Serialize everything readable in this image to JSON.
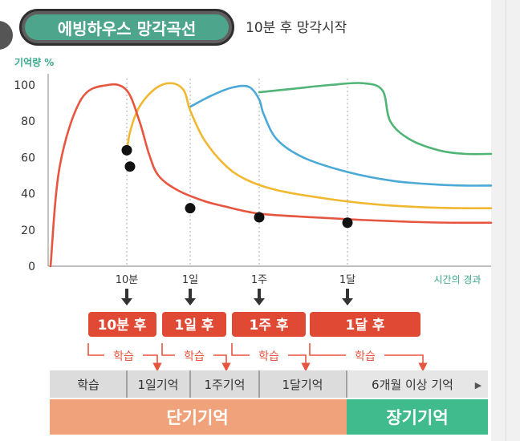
{
  "header": {
    "title": "에빙하우스 망각곡선",
    "subtitle": "10분 후 망각시작"
  },
  "chart_data": {
    "type": "line",
    "title": "에빙하우스 망각곡선",
    "ylabel": "기억량 %",
    "xlabel": "시간의 경과",
    "ylim": [
      0,
      100
    ],
    "yticks": [
      "0",
      "20",
      "40",
      "60",
      "80",
      "100"
    ],
    "x_marks": [
      "10분",
      "1일",
      "1주",
      "1달"
    ],
    "series": [
      {
        "name": "red",
        "color": "#e8553f",
        "points": [
          [
            0,
            0
          ],
          [
            0.12,
            55
          ],
          [
            0.4,
            92
          ],
          [
            0.75,
            100
          ],
          [
            1.0,
            97
          ],
          [
            1.2,
            80
          ],
          [
            1.35,
            62
          ],
          [
            1.5,
            50
          ],
          [
            1.8,
            42
          ],
          [
            2.2,
            36
          ],
          [
            2.5,
            33
          ],
          [
            3.0,
            29
          ],
          [
            3.6,
            27
          ],
          [
            4.2,
            25.5
          ],
          [
            4.8,
            24.5
          ],
          [
            5.4,
            24
          ],
          [
            6,
            24
          ]
        ]
      },
      {
        "name": "yellow",
        "color": "#f0b72f",
        "points": [
          [
            1.0,
            62
          ],
          [
            1.05,
            74
          ],
          [
            1.2,
            88
          ],
          [
            1.45,
            98
          ],
          [
            1.7,
            101
          ],
          [
            1.9,
            97
          ],
          [
            2.0,
            86
          ],
          [
            2.2,
            70
          ],
          [
            2.5,
            56
          ],
          [
            2.8,
            48
          ],
          [
            3.2,
            42
          ],
          [
            3.8,
            37
          ],
          [
            4.4,
            34
          ],
          [
            5.0,
            32.5
          ],
          [
            5.6,
            32
          ],
          [
            6,
            32
          ]
        ]
      },
      {
        "name": "blue",
        "color": "#4aa9d6",
        "points": [
          [
            2.0,
            88
          ],
          [
            2.3,
            94
          ],
          [
            2.6,
            98.5
          ],
          [
            2.85,
            99
          ],
          [
            3.0,
            92
          ],
          [
            3.05,
            84
          ],
          [
            3.2,
            70
          ],
          [
            3.5,
            60
          ],
          [
            4.0,
            52
          ],
          [
            4.6,
            47
          ],
          [
            5.2,
            45
          ],
          [
            5.6,
            44.5
          ],
          [
            6,
            44.5
          ]
        ]
      },
      {
        "name": "green",
        "color": "#4fb475",
        "points": [
          [
            3.0,
            96
          ],
          [
            3.4,
            98
          ],
          [
            3.8,
            100
          ],
          [
            4.2,
            101
          ],
          [
            4.45,
            97
          ],
          [
            4.55,
            80
          ],
          [
            4.8,
            70
          ],
          [
            5.2,
            64
          ],
          [
            5.6,
            62
          ],
          [
            6,
            62
          ]
        ]
      }
    ],
    "markers": [
      [
        1.0,
        64
      ],
      [
        1.05,
        55
      ],
      [
        2.0,
        32
      ],
      [
        3.0,
        27
      ],
      [
        4.0,
        24
      ]
    ]
  },
  "steps": {
    "boxes": [
      "10분 후",
      "1일 후",
      "1주 후",
      "1달 후"
    ],
    "study_label": "학습"
  },
  "timeline": {
    "cells": [
      "학습",
      "1일기억",
      "1주기억",
      "1달기억",
      "6개월 이상 기억"
    ],
    "arrow": "▶",
    "short_term": "단기기억",
    "long_term": "장기기억"
  },
  "colors": {
    "red": "#e8553f",
    "box": "#e04a35",
    "short_bar": "#f0a37a",
    "long_bar": "#3fbb8e",
    "accent": "#4da58c"
  }
}
